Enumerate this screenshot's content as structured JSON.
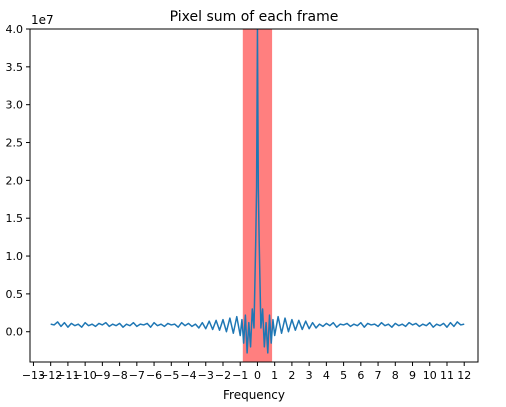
{
  "chart_data": {
    "type": "line",
    "title": "Pixel sum of each frame",
    "xlabel": "Frequency",
    "ylabel": "",
    "y_offset_label": "1e7",
    "xlim": [
      -13.2,
      12.8
    ],
    "ylim": [
      -0.4,
      4.0
    ],
    "x_ticks": [
      -13,
      -12,
      -11,
      -10,
      -9,
      -8,
      -7,
      -6,
      -5,
      -4,
      -3,
      -2,
      -1,
      0,
      1,
      2,
      3,
      4,
      5,
      6,
      7,
      8,
      9,
      10,
      11,
      12
    ],
    "x_tick_labels": [
      "−13",
      "−12",
      "−11",
      "−10",
      "−9",
      "−8",
      "−7",
      "−6",
      "−5",
      "−4",
      "−3",
      "−2",
      "−1",
      "0",
      "1",
      "2",
      "3",
      "4",
      "5",
      "6",
      "7",
      "8",
      "9",
      "10",
      "11",
      "12"
    ],
    "y_ticks": [
      0.0,
      0.5,
      1.0,
      1.5,
      2.0,
      2.5,
      3.0,
      3.5,
      4.0
    ],
    "y_tick_labels": [
      "0.0",
      "0.5",
      "1.0",
      "1.5",
      "2.0",
      "2.5",
      "3.0",
      "3.5",
      "4.0"
    ],
    "grid": false,
    "highlight_span": {
      "x_start": -0.85,
      "x_end": 0.85,
      "color": "#ff7f7f"
    },
    "series": [
      {
        "color": "#1f77b4",
        "points": [
          [
            -12.0,
            0.1
          ],
          [
            -11.8,
            0.09
          ],
          [
            -11.6,
            0.13
          ],
          [
            -11.4,
            0.07
          ],
          [
            -11.2,
            0.12
          ],
          [
            -11.0,
            0.06
          ],
          [
            -10.8,
            0.11
          ],
          [
            -10.6,
            0.08
          ],
          [
            -10.4,
            0.1
          ],
          [
            -10.2,
            0.06
          ],
          [
            -10.0,
            0.12
          ],
          [
            -9.8,
            0.08
          ],
          [
            -9.6,
            0.1
          ],
          [
            -9.4,
            0.07
          ],
          [
            -9.2,
            0.11
          ],
          [
            -9.0,
            0.09
          ],
          [
            -8.8,
            0.12
          ],
          [
            -8.6,
            0.07
          ],
          [
            -8.4,
            0.1
          ],
          [
            -8.2,
            0.08
          ],
          [
            -8.0,
            0.11
          ],
          [
            -7.8,
            0.06
          ],
          [
            -7.6,
            0.1
          ],
          [
            -7.4,
            0.08
          ],
          [
            -7.2,
            0.12
          ],
          [
            -7.0,
            0.07
          ],
          [
            -6.8,
            0.1
          ],
          [
            -6.6,
            0.09
          ],
          [
            -6.4,
            0.11
          ],
          [
            -6.2,
            0.06
          ],
          [
            -6.0,
            0.12
          ],
          [
            -5.8,
            0.08
          ],
          [
            -5.6,
            0.1
          ],
          [
            -5.4,
            0.07
          ],
          [
            -5.2,
            0.11
          ],
          [
            -5.0,
            0.09
          ],
          [
            -4.8,
            0.1
          ],
          [
            -4.6,
            0.06
          ],
          [
            -4.4,
            0.12
          ],
          [
            -4.2,
            0.08
          ],
          [
            -4.0,
            0.11
          ],
          [
            -3.8,
            0.07
          ],
          [
            -3.6,
            0.1
          ],
          [
            -3.4,
            0.05
          ],
          [
            -3.2,
            0.12
          ],
          [
            -3.0,
            0.04
          ],
          [
            -2.8,
            0.14
          ],
          [
            -2.6,
            0.03
          ],
          [
            -2.4,
            0.15
          ],
          [
            -2.2,
            0.02
          ],
          [
            -2.0,
            0.16
          ],
          [
            -1.8,
            0.0
          ],
          [
            -1.6,
            0.18
          ],
          [
            -1.4,
            -0.02
          ],
          [
            -1.2,
            0.2
          ],
          [
            -1.0,
            -0.05
          ],
          [
            -0.9,
            0.16
          ],
          [
            -0.8,
            -0.15
          ],
          [
            -0.7,
            0.22
          ],
          [
            -0.6,
            -0.28
          ],
          [
            -0.5,
            0.12
          ],
          [
            -0.4,
            -0.2
          ],
          [
            -0.3,
            0.3
          ],
          [
            -0.2,
            0.05
          ],
          [
            -0.1,
            1.2
          ],
          [
            -0.05,
            1.9
          ],
          [
            0.0,
            4.0
          ],
          [
            0.05,
            1.9
          ],
          [
            0.1,
            1.2
          ],
          [
            0.2,
            0.05
          ],
          [
            0.3,
            0.3
          ],
          [
            0.4,
            -0.2
          ],
          [
            0.5,
            0.12
          ],
          [
            0.6,
            -0.28
          ],
          [
            0.7,
            0.22
          ],
          [
            0.8,
            -0.15
          ],
          [
            0.9,
            0.16
          ],
          [
            1.0,
            -0.05
          ],
          [
            1.2,
            0.2
          ],
          [
            1.4,
            -0.02
          ],
          [
            1.6,
            0.18
          ],
          [
            1.8,
            0.0
          ],
          [
            2.0,
            0.16
          ],
          [
            2.2,
            0.02
          ],
          [
            2.4,
            0.15
          ],
          [
            2.6,
            0.03
          ],
          [
            2.8,
            0.14
          ],
          [
            3.0,
            0.04
          ],
          [
            3.2,
            0.12
          ],
          [
            3.4,
            0.05
          ],
          [
            3.6,
            0.1
          ],
          [
            3.8,
            0.07
          ],
          [
            4.0,
            0.11
          ],
          [
            4.2,
            0.08
          ],
          [
            4.4,
            0.12
          ],
          [
            4.6,
            0.06
          ],
          [
            4.8,
            0.1
          ],
          [
            5.0,
            0.09
          ],
          [
            5.2,
            0.11
          ],
          [
            5.4,
            0.07
          ],
          [
            5.6,
            0.1
          ],
          [
            5.8,
            0.08
          ],
          [
            6.0,
            0.12
          ],
          [
            6.2,
            0.06
          ],
          [
            6.4,
            0.11
          ],
          [
            6.6,
            0.09
          ],
          [
            6.8,
            0.1
          ],
          [
            7.0,
            0.07
          ],
          [
            7.2,
            0.12
          ],
          [
            7.4,
            0.08
          ],
          [
            7.6,
            0.1
          ],
          [
            7.8,
            0.06
          ],
          [
            8.0,
            0.11
          ],
          [
            8.2,
            0.08
          ],
          [
            8.4,
            0.1
          ],
          [
            8.6,
            0.07
          ],
          [
            8.8,
            0.12
          ],
          [
            9.0,
            0.09
          ],
          [
            9.2,
            0.11
          ],
          [
            9.4,
            0.07
          ],
          [
            9.6,
            0.1
          ],
          [
            9.8,
            0.08
          ],
          [
            10.0,
            0.12
          ],
          [
            10.2,
            0.06
          ],
          [
            10.4,
            0.1
          ],
          [
            10.6,
            0.08
          ],
          [
            10.8,
            0.11
          ],
          [
            11.0,
            0.06
          ],
          [
            11.2,
            0.12
          ],
          [
            11.4,
            0.07
          ],
          [
            11.6,
            0.13
          ],
          [
            11.8,
            0.09
          ],
          [
            12.0,
            0.1
          ]
        ]
      }
    ]
  }
}
